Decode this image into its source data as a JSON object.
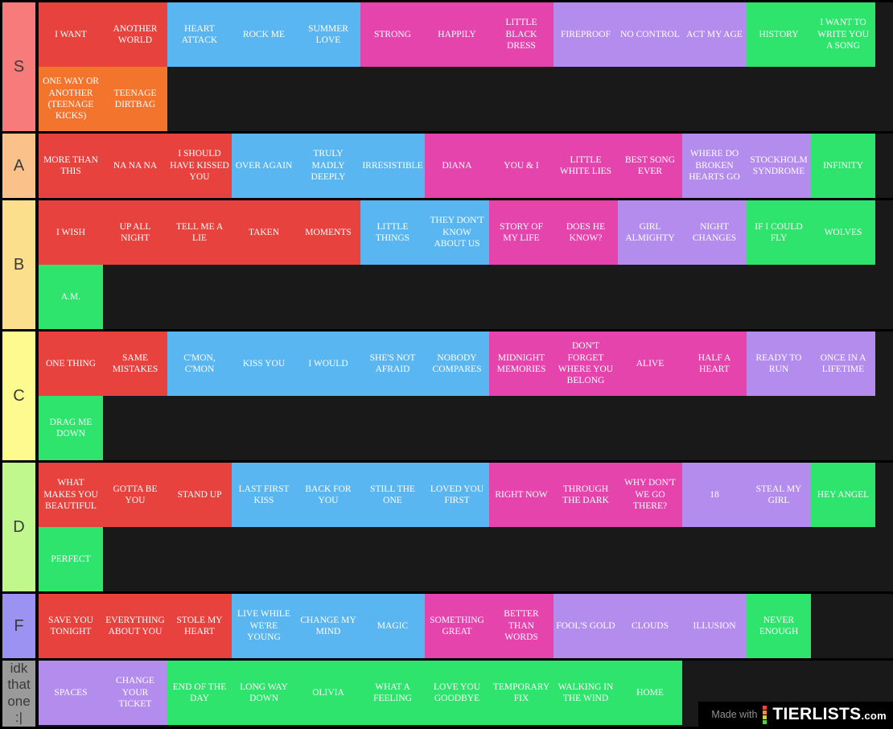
{
  "palette": {
    "red": "#e8423f",
    "orange": "#f3742d",
    "blue": "#5ab6f0",
    "magenta": "#e544ad",
    "purple": "#b48cee",
    "green": "#2ee46c"
  },
  "footer": {
    "made_with": "Made with",
    "brand": "TIERLISTS",
    "brand_suffix": ".com",
    "icon_colors": [
      "#e84a3f",
      "#ef8b3a",
      "#cad23f",
      "#51d23f"
    ]
  },
  "tiers": [
    {
      "id": "s",
      "label": "S",
      "label_color": "#f87b7b",
      "items": [
        {
          "label": "I WANT",
          "color": "red"
        },
        {
          "label": "ANOTHER WORLD",
          "color": "red"
        },
        {
          "label": "HEART ATTACK",
          "color": "blue"
        },
        {
          "label": "ROCK ME",
          "color": "blue"
        },
        {
          "label": "SUMMER LOVE",
          "color": "blue"
        },
        {
          "label": "STRONG",
          "color": "magenta"
        },
        {
          "label": "HAPPILY",
          "color": "magenta"
        },
        {
          "label": "LITTLE BLACK DRESS",
          "color": "magenta"
        },
        {
          "label": "FIREPROOF",
          "color": "purple"
        },
        {
          "label": "NO CONTROL",
          "color": "purple"
        },
        {
          "label": "ACT MY AGE",
          "color": "purple"
        },
        {
          "label": "HISTORY",
          "color": "green"
        },
        {
          "label": "I WANT TO WRITE YOU A SONG",
          "color": "green"
        },
        {
          "label": "ONE WAY OR ANOTHER (TEENAGE KICKS)",
          "color": "orange"
        },
        {
          "label": "TEENAGE DIRTBAG",
          "color": "orange"
        }
      ]
    },
    {
      "id": "a",
      "label": "A",
      "label_color": "#fac28a",
      "items": [
        {
          "label": "MORE THAN THIS",
          "color": "red"
        },
        {
          "label": "NA NA NA",
          "color": "red"
        },
        {
          "label": "I SHOULD HAVE KISSED YOU",
          "color": "red"
        },
        {
          "label": "OVER AGAIN",
          "color": "blue"
        },
        {
          "label": "TRULY MADLY DEEPLY",
          "color": "blue"
        },
        {
          "label": "IRRESISTIBLE",
          "color": "blue"
        },
        {
          "label": "DIANA",
          "color": "magenta"
        },
        {
          "label": "YOU & I",
          "color": "magenta"
        },
        {
          "label": "LITTLE WHITE LIES",
          "color": "magenta"
        },
        {
          "label": "BEST SONG EVER",
          "color": "magenta"
        },
        {
          "label": "WHERE DO BROKEN HEARTS GO",
          "color": "purple"
        },
        {
          "label": "STOCKHOLM SYNDROME",
          "color": "purple"
        },
        {
          "label": "INFINITY",
          "color": "green"
        }
      ]
    },
    {
      "id": "b",
      "label": "B",
      "label_color": "#fbdf8c",
      "items": [
        {
          "label": "I WISH",
          "color": "red"
        },
        {
          "label": "UP ALL NIGHT",
          "color": "red"
        },
        {
          "label": "TELL ME A LIE",
          "color": "red"
        },
        {
          "label": "TAKEN",
          "color": "red"
        },
        {
          "label": "MOMENTS",
          "color": "red"
        },
        {
          "label": "LITTLE THINGS",
          "color": "blue"
        },
        {
          "label": "THEY DON'T KNOW ABOUT US",
          "color": "blue"
        },
        {
          "label": "STORY OF MY LIFE",
          "color": "magenta"
        },
        {
          "label": "DOES HE KNOW?",
          "color": "magenta"
        },
        {
          "label": "GIRL ALMIGHTY",
          "color": "purple"
        },
        {
          "label": "NIGHT CHANGES",
          "color": "purple"
        },
        {
          "label": "IF I COULD FLY",
          "color": "green"
        },
        {
          "label": "WOLVES",
          "color": "green"
        },
        {
          "label": "A.M.",
          "color": "green"
        }
      ]
    },
    {
      "id": "c",
      "label": "C",
      "label_color": "#fdfa8f",
      "items": [
        {
          "label": "ONE THING",
          "color": "red"
        },
        {
          "label": "SAME MISTAKES",
          "color": "red"
        },
        {
          "label": "C'MON, C'MON",
          "color": "blue"
        },
        {
          "label": "KISS YOU",
          "color": "blue"
        },
        {
          "label": "I WOULD",
          "color": "blue"
        },
        {
          "label": "SHE'S NOT AFRAID",
          "color": "blue"
        },
        {
          "label": "NOBODY COMPARES",
          "color": "blue"
        },
        {
          "label": "MIDNIGHT MEMORIES",
          "color": "magenta"
        },
        {
          "label": "DON'T FORGET WHERE YOU BELONG",
          "color": "magenta"
        },
        {
          "label": "ALIVE",
          "color": "magenta"
        },
        {
          "label": "HALF A HEART",
          "color": "magenta"
        },
        {
          "label": "READY TO RUN",
          "color": "purple"
        },
        {
          "label": "ONCE IN A LIFETIME",
          "color": "purple"
        },
        {
          "label": "DRAG ME DOWN",
          "color": "green"
        }
      ]
    },
    {
      "id": "d",
      "label": "D",
      "label_color": "#c0f88e",
      "items": [
        {
          "label": "WHAT MAKES YOU BEAUTIFUL",
          "color": "red"
        },
        {
          "label": "GOTTA BE YOU",
          "color": "red"
        },
        {
          "label": "STAND UP",
          "color": "red"
        },
        {
          "label": "LAST FIRST KISS",
          "color": "blue"
        },
        {
          "label": "BACK FOR YOU",
          "color": "blue"
        },
        {
          "label": "STILL THE ONE",
          "color": "blue"
        },
        {
          "label": "LOVED YOU FIRST",
          "color": "blue"
        },
        {
          "label": "RIGHT NOW",
          "color": "magenta"
        },
        {
          "label": "THROUGH THE DARK",
          "color": "magenta"
        },
        {
          "label": "WHY DON'T WE GO THERE?",
          "color": "magenta"
        },
        {
          "label": "18",
          "color": "purple"
        },
        {
          "label": "STEAL MY GIRL",
          "color": "purple"
        },
        {
          "label": "HEY ANGEL",
          "color": "green"
        },
        {
          "label": "PERFECT",
          "color": "green"
        }
      ]
    },
    {
      "id": "f",
      "label": "F",
      "label_color": "#9c92f2",
      "items": [
        {
          "label": "SAVE YOU TONIGHT",
          "color": "red"
        },
        {
          "label": "EVERYTHING ABOUT YOU",
          "color": "red"
        },
        {
          "label": "STOLE MY HEART",
          "color": "red"
        },
        {
          "label": "LIVE WHILE WE'RE YOUNG",
          "color": "blue"
        },
        {
          "label": "CHANGE MY MIND",
          "color": "blue"
        },
        {
          "label": "MAGIC",
          "color": "blue"
        },
        {
          "label": "SOMETHING GREAT",
          "color": "magenta"
        },
        {
          "label": "BETTER THAN WORDS",
          "color": "magenta"
        },
        {
          "label": "FOOL'S GOLD",
          "color": "purple"
        },
        {
          "label": "CLOUDS",
          "color": "purple"
        },
        {
          "label": "ILLUSION",
          "color": "purple"
        },
        {
          "label": "NEVER ENOUGH",
          "color": "green"
        }
      ]
    },
    {
      "id": "idk",
      "label": "idk that one :|",
      "label_color": "#9a9a9a",
      "items": [
        {
          "label": "SPACES",
          "color": "purple"
        },
        {
          "label": "CHANGE YOUR TICKET",
          "color": "purple"
        },
        {
          "label": "END OF THE DAY",
          "color": "green"
        },
        {
          "label": "LONG WAY DOWN",
          "color": "green"
        },
        {
          "label": "OLIVIA",
          "color": "green"
        },
        {
          "label": "WHAT A FEELING",
          "color": "green"
        },
        {
          "label": "LOVE YOU GOODBYE",
          "color": "green"
        },
        {
          "label": "TEMPORARY FIX",
          "color": "green"
        },
        {
          "label": "WALKING IN THE WIND",
          "color": "green"
        },
        {
          "label": "HOME",
          "color": "green"
        }
      ]
    }
  ]
}
